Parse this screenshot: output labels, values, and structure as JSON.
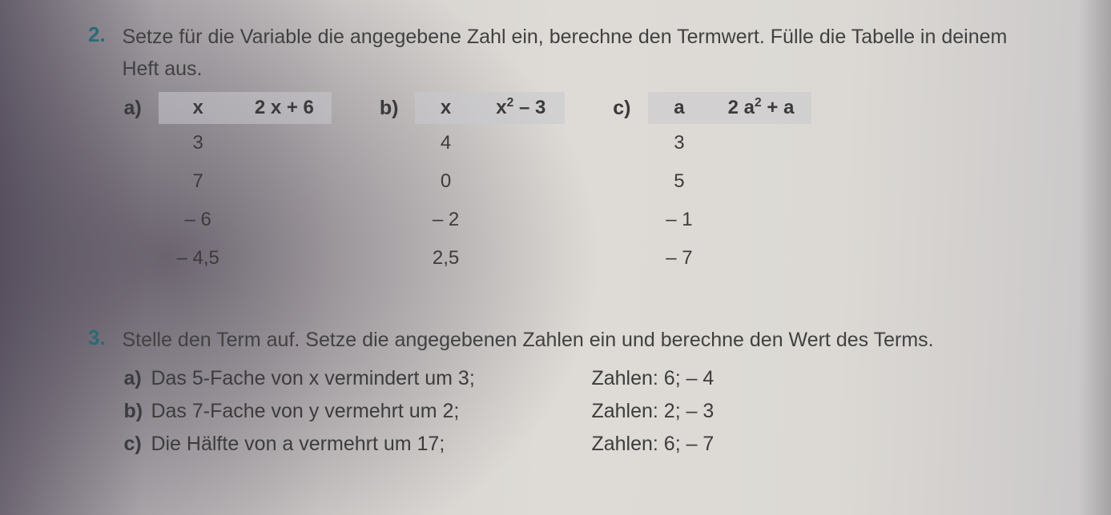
{
  "colors": {
    "exercise_number": "#2b6b74",
    "text": "#3a3a3a",
    "header_bg": "rgba(200,200,205,0.55)"
  },
  "typography": {
    "family": "Segoe UI / Helvetica Neue / Arial",
    "body_size_pt": 19,
    "number_size_pt": 20,
    "number_weight": 700
  },
  "ex2": {
    "number": "2.",
    "instruction_line1": "Setze für die Variable die angegebene Zahl ein, berechne den Termwert. Fülle die Tabelle in deinem",
    "instruction_line2": "Heft aus.",
    "parts": {
      "a": {
        "label": "a)",
        "var_header": "x",
        "term_header": "2 x + 6",
        "values": [
          "3",
          "7",
          "– 6",
          "– 4,5"
        ]
      },
      "b": {
        "label": "b)",
        "var_header": "x",
        "term_header_html": "x<sup>2</sup> – 3",
        "term_header_plain": "x² – 3",
        "values": [
          "4",
          "0",
          "– 2",
          "2,5"
        ]
      },
      "c": {
        "label": "c)",
        "var_header": "a",
        "term_header_html": "2 a<sup>2</sup> + a",
        "term_header_plain": "2 a² + a",
        "values": [
          "3",
          "5",
          "– 1",
          "– 7"
        ]
      }
    }
  },
  "ex3": {
    "number": "3.",
    "instruction": "Stelle den Term auf. Setze die angegebenen Zahlen ein und berechne den Wert des Terms.",
    "parts": [
      {
        "label": "a)",
        "desc": "Das 5-Fache von x vermindert um 3;",
        "nums": "Zahlen:  6;  – 4"
      },
      {
        "label": "b)",
        "desc": "Das 7-Fache von y vermehrt um 2;",
        "nums": "Zahlen:  2;  – 3"
      },
      {
        "label": "c)",
        "desc": "Die Hälfte von a vermehrt um 17;",
        "nums": "Zahlen:  6;  – 7"
      }
    ]
  }
}
